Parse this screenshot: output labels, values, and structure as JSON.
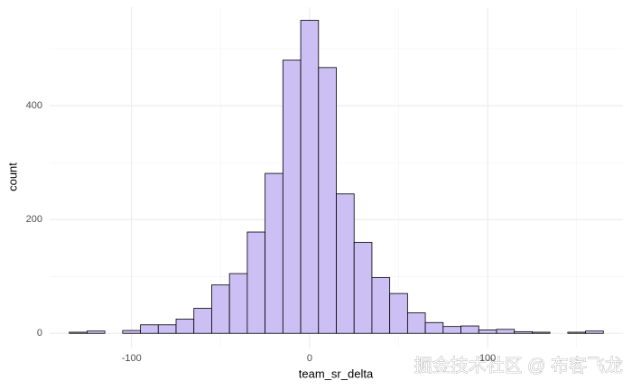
{
  "chart_data": {
    "type": "histogram",
    "x_label": "team_sr_delta",
    "y_label": "count",
    "bins": [
      -135,
      -125,
      -115,
      -105,
      -95,
      -85,
      -75,
      -65,
      -55,
      -45,
      -35,
      -25,
      -15,
      -5,
      5,
      15,
      25,
      35,
      45,
      55,
      65,
      75,
      85,
      95,
      105,
      115,
      125,
      135,
      145,
      155,
      165
    ],
    "values": [
      2,
      4,
      0,
      5,
      15,
      15,
      25,
      44,
      85,
      105,
      178,
      281,
      480,
      550,
      467,
      245,
      160,
      98,
      70,
      36,
      19,
      12,
      13,
      6,
      7,
      3,
      2,
      0,
      2,
      4
    ],
    "color": "#cbbff4",
    "edge_color": "#000000",
    "xlim": [
      -146,
      176
    ],
    "ylim": [
      -25,
      573
    ],
    "xticks": [
      -100,
      0,
      100
    ],
    "yticks": [
      0,
      200,
      400
    ],
    "x_minor_grid": [
      -50,
      50,
      150
    ],
    "y_minor_grid": [
      100,
      300,
      500
    ],
    "grid": true,
    "watermark": "掘金技术社区 @ 布客飞龙"
  }
}
